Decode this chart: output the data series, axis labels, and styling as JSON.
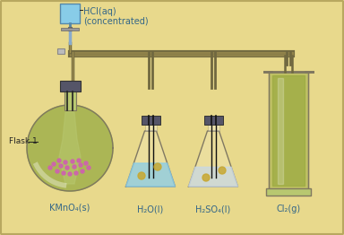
{
  "bg_color": "#e8d98c",
  "border_color": "#b8a860",
  "flask_fill": "#9aaa40",
  "flask_fill2": "#b8c870",
  "flask_outline": "#807860",
  "liquid_blue": "#88cce8",
  "liquid_white": "#d0dce8",
  "stopper_color": "#555568",
  "pipe_color_dark": "#706840",
  "pipe_color_light": "#a09050",
  "kmno4_color": "#cc66aa",
  "h2so4_color": "#c8d8e4",
  "cl2_color": "#9aaa40",
  "funnel_blue": "#88cce8",
  "funnel_outline": "#5588aa",
  "text_color": "#336688",
  "flask1_label_color": "#222222",
  "labels": [
    "KMnO₄(s)",
    "H₂O(l)",
    "H₂SO₄(l)",
    "Cl₂(g)"
  ],
  "flask1_label": "Flask 1",
  "hcl_line1": "HCl(aq)",
  "hcl_line2": "(concentrated)",
  "bubble_color": "#c8a830"
}
